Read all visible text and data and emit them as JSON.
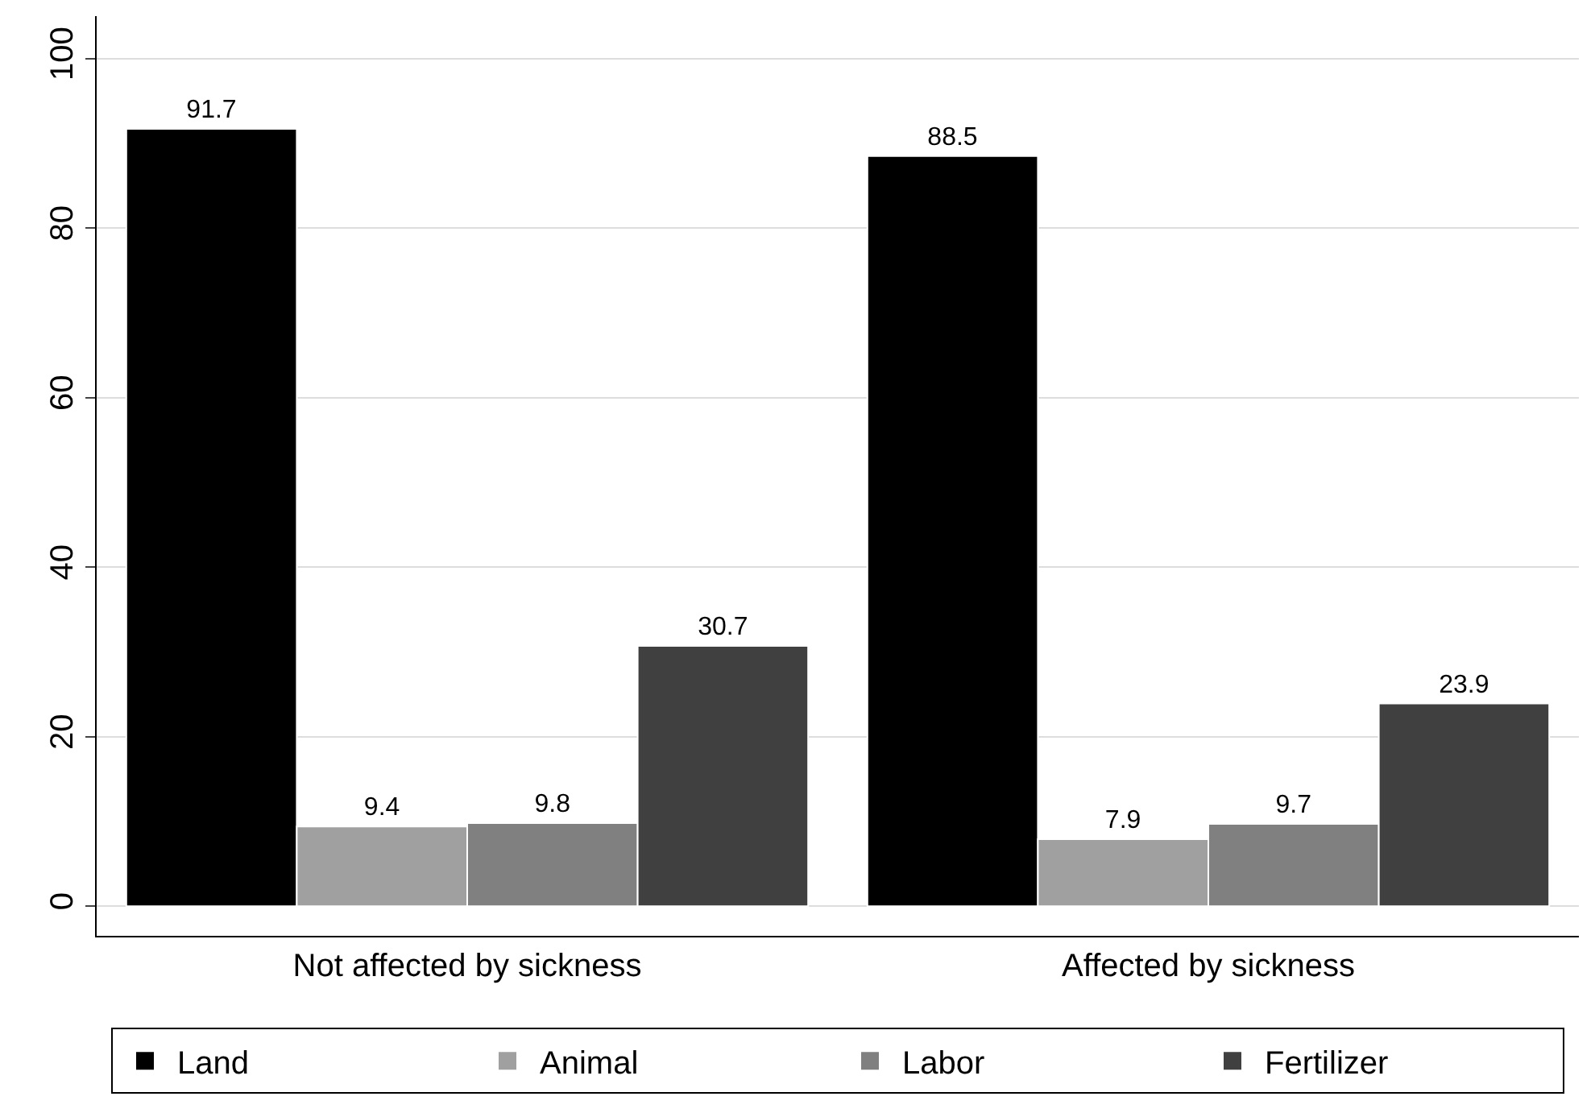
{
  "chart_data": {
    "type": "bar",
    "categories": [
      "Not affected by sickness",
      "Affected by sickness"
    ],
    "series": [
      {
        "name": "Land",
        "color": "#000000",
        "values": [
          91.7,
          88.5
        ]
      },
      {
        "name": "Animal",
        "color": "#a0a0a0",
        "values": [
          9.4,
          7.9
        ]
      },
      {
        "name": "Labor",
        "color": "#808080",
        "values": [
          9.8,
          9.7
        ]
      },
      {
        "name": "Fertilizer",
        "color": "#404040",
        "values": [
          30.7,
          23.9
        ]
      }
    ],
    "ylim": [
      -3.5,
      105
    ],
    "yticks": [
      0,
      20,
      40,
      60,
      80,
      100
    ],
    "grid": "y",
    "data_labels": true,
    "legend": "bottom"
  }
}
